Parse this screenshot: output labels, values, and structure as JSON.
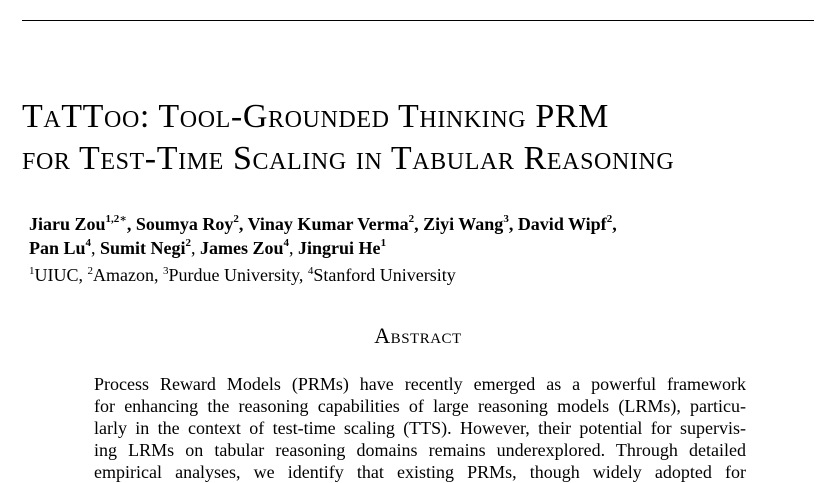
{
  "title": {
    "line1": "TaTToo: Tool-Grounded Thinking PRM",
    "line2": "for Test-Time Scaling in Tabular Reasoning"
  },
  "authors_row1": [
    {
      "name": "Jiaru Zou",
      "sup": "1,2∗"
    },
    {
      "name": "Soumya Roy",
      "sup": "2"
    },
    {
      "name": "Vinay Kumar Verma",
      "sup": "2"
    },
    {
      "name": "Ziyi Wang",
      "sup": "3"
    },
    {
      "name": "David Wipf",
      "sup": "2"
    }
  ],
  "authors_row2": [
    {
      "name": "Pan Lu",
      "sup": "4"
    },
    {
      "name": "Sumit Negi",
      "sup": "2"
    },
    {
      "name": "James Zou",
      "sup": "4"
    },
    {
      "name": "Jingrui He",
      "sup": "1"
    }
  ],
  "affiliations": [
    {
      "sup": "1",
      "name": "UIUC"
    },
    {
      "sup": "2",
      "name": "Amazon"
    },
    {
      "sup": "3",
      "name": "Purdue University"
    },
    {
      "sup": "4",
      "name": "Stanford University"
    }
  ],
  "abstract": {
    "heading": "Abstract",
    "lines": [
      "Process Reward Models (PRMs) have recently emerged as a powerful framework",
      "for enhancing the reasoning capabilities of large reasoning models (LRMs), particu-",
      "larly in the context of test-time scaling (TTS). However, their potential for supervis-",
      "ing LRMs on tabular reasoning domains remains underexplored. Through detailed",
      "empirical analyses, we identify that existing PRMs, though widely adopted for"
    ]
  }
}
